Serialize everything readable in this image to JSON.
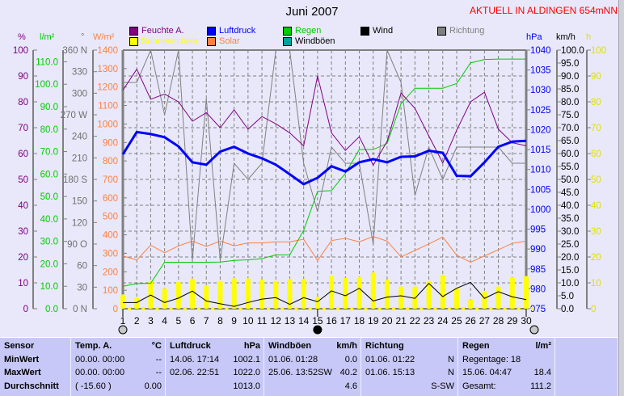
{
  "header": {
    "title": "Juni 2007",
    "aktuell": "AKTUELL IN ALDINGEN 654mNN"
  },
  "legend": [
    {
      "label": "Feuchte A.",
      "color": "#800080"
    },
    {
      "label": "Luftdruck",
      "color": "#0000ff"
    },
    {
      "label": "Regen",
      "color": "#00cc00"
    },
    {
      "label": "Wind",
      "color": "#000000"
    },
    {
      "label": "Richtung",
      "color": "#808080"
    },
    {
      "label": "Sonnenschein",
      "color": "#ffff00"
    },
    {
      "label": "Solar",
      "color": "#ff8040"
    },
    {
      "label": "Windböen",
      "color": "#00a0a0"
    }
  ],
  "units": {
    "pct": "%",
    "rain": "l/m²",
    "deg": "°",
    "solar": "W/m²",
    "hpa": "hPa",
    "kmh": "km/h",
    "h": "h"
  },
  "chart_data": {
    "type": "line",
    "title": "Juni 2007",
    "x": [
      1,
      2,
      3,
      4,
      5,
      6,
      7,
      8,
      9,
      10,
      11,
      12,
      13,
      14,
      15,
      16,
      17,
      18,
      19,
      20,
      21,
      22,
      23,
      24,
      25,
      26,
      27,
      28,
      29,
      30
    ],
    "axes": {
      "humidity": {
        "min": 0,
        "max": 100,
        "ticks": [
          0,
          10,
          20,
          30,
          40,
          50,
          60,
          70,
          80,
          90,
          100
        ],
        "labels": [
          "0",
          "10",
          "20",
          "30",
          "40",
          "50",
          "60",
          "70",
          "80",
          "90",
          "100"
        ],
        "color": "#800080"
      },
      "rain": {
        "min": 0,
        "max": 115.2,
        "ticks": [
          0,
          10,
          20,
          30,
          40,
          50,
          60,
          70,
          80,
          90,
          100,
          110
        ],
        "labels": [
          "0.0",
          "10.0",
          "20.0",
          "30.0",
          "40.0",
          "50.0",
          "60.0",
          "70.0",
          "80.0",
          "90.0",
          "100.0",
          "110.0"
        ],
        "color": "#00cc00"
      },
      "direction": {
        "min": 0,
        "max": 360,
        "ticks": [
          0,
          30,
          60,
          90,
          120,
          150,
          180,
          210,
          240,
          270,
          300,
          330,
          360
        ],
        "labels": [
          "0   N",
          "30",
          "60",
          "90  O",
          "120",
          "150",
          "180 S",
          "210",
          "240",
          "270 W",
          "300",
          "330",
          "360 N"
        ],
        "color": "#707070"
      },
      "solar": {
        "min": 0,
        "max": 1400,
        "ticks": [
          0,
          100,
          200,
          300,
          400,
          500,
          600,
          700,
          800,
          900,
          1000,
          1100,
          1200,
          1300,
          1400
        ],
        "labels": [
          "0",
          "100",
          "200",
          "300",
          "400",
          "500",
          "600",
          "700",
          "800",
          "900",
          "1000",
          "1100",
          "1200",
          "1300",
          "1400"
        ],
        "color": "#ff8040"
      },
      "pressure": {
        "min": 975,
        "max": 1040,
        "ticks": [
          975,
          980,
          985,
          990,
          995,
          1000,
          1005,
          1010,
          1015,
          1020,
          1025,
          1030,
          1035,
          1040
        ],
        "labels": [
          "975",
          "980",
          "985",
          "990",
          "995",
          "1000",
          "1005",
          "1010",
          "1015",
          "1020",
          "1025",
          "1030",
          "1035",
          "1040"
        ],
        "color": "#0000ff"
      },
      "wind": {
        "min": 0,
        "max": 100,
        "ticks": [
          0,
          5,
          10,
          15,
          20,
          25,
          30,
          35,
          40,
          45,
          50,
          55,
          60,
          65,
          70,
          75,
          80,
          85,
          90,
          95,
          100
        ],
        "labels": [
          "0.0",
          "5.0",
          "10.0",
          "15.0",
          "20.0",
          "25.0",
          "30.0",
          "35.0",
          "40.0",
          "45.0",
          "50.0",
          "55.0",
          "60.0",
          "65.0",
          "70.0",
          "75.0",
          "80.0",
          "85.0",
          "90.0",
          "95.0",
          "100.0"
        ],
        "color": "#000000"
      },
      "sunshine": {
        "min": 0,
        "max": 100,
        "ticks": [
          0,
          10,
          20,
          30,
          40,
          50,
          60,
          70,
          80,
          90,
          100
        ],
        "labels": [
          "0",
          "10",
          "20",
          "30",
          "40",
          "50",
          "60",
          "70",
          "80",
          "90",
          "100"
        ],
        "color": "#e0e000"
      }
    },
    "series": [
      {
        "name": "Sonnenschein",
        "axis": "sunshine",
        "kind": "bar",
        "color": "#ffff00",
        "values": [
          5.5,
          4.3,
          10.8,
          7.9,
          10.5,
          11.6,
          9,
          10.8,
          11.8,
          11.8,
          11.3,
          10.8,
          11.6,
          11.6,
          4.6,
          12.8,
          11.9,
          12.3,
          14,
          11.3,
          8.6,
          8.6,
          10.8,
          13.1,
          8.1,
          3.5,
          6.7,
          8.6,
          12.3,
          12.6
        ]
      },
      {
        "name": "Solar",
        "axis": "solar",
        "kind": "line",
        "color": "#ff8040",
        "width": 1,
        "values": [
          286,
          264,
          344,
          303,
          340,
          366,
          337,
          366,
          341,
          356,
          356,
          362,
          362,
          376,
          261,
          369,
          381,
          362,
          391,
          366,
          281,
          315,
          351,
          388,
          290,
          252,
          286,
          319,
          354,
          366
        ]
      },
      {
        "name": "Regen",
        "axis": "rain",
        "kind": "line",
        "color": "#00cc00",
        "width": 1,
        "values": [
          10.0,
          11.2,
          11.3,
          20.7,
          20.7,
          20.7,
          20.7,
          20.8,
          21.5,
          21.8,
          22.3,
          24.0,
          24.0,
          34.9,
          52.3,
          52.6,
          60.3,
          70.9,
          70.9,
          73.6,
          91.3,
          98.2,
          98.2,
          98.2,
          100.3,
          109.5,
          111.0,
          111.2,
          111.2,
          111.2
        ]
      },
      {
        "name": "Richtung",
        "axis": "direction",
        "kind": "line",
        "color": "#808080",
        "width": 1,
        "values": [
          315,
          315,
          360,
          270,
          360,
          67.5,
          292.5,
          67.5,
          202.5,
          180,
          202.5,
          360,
          360,
          202.5,
          135,
          225,
          202.5,
          202.5,
          90,
          360,
          315,
          157.5,
          225,
          180,
          225,
          225,
          225,
          225,
          202.5,
          202.5
        ]
      },
      {
        "name": "Feuchte A.",
        "axis": "humidity",
        "kind": "line",
        "color": "#800080",
        "width": 1,
        "values": [
          84.5,
          92.6,
          81,
          83,
          80,
          72.5,
          75.8,
          70,
          76.9,
          69.4,
          74.3,
          71.5,
          68,
          63,
          90,
          68,
          61.2,
          66.5,
          55.5,
          64.7,
          83.4,
          77.5,
          66.8,
          56.4,
          69,
          80,
          83.7,
          69.4,
          64.2,
          63
        ]
      },
      {
        "name": "Luftdruck",
        "axis": "pressure",
        "kind": "line",
        "color": "#0000ff",
        "width": 3,
        "values": [
          1013.8,
          1019.4,
          1018.9,
          1018.1,
          1015.8,
          1011.8,
          1011.2,
          1014.5,
          1015.7,
          1014.0,
          1012.8,
          1011.2,
          1008.8,
          1006.3,
          1007.9,
          1010.8,
          1009.5,
          1011.8,
          1012.6,
          1011.8,
          1013.2,
          1013.3,
          1014.7,
          1014.2,
          1008.4,
          1008.3,
          1011.8,
          1015.7,
          1017.0,
          1017.2
        ]
      },
      {
        "name": "Wind",
        "axis": "wind",
        "kind": "line",
        "color": "#000000",
        "width": 1,
        "values": [
          2.4,
          2.4,
          5.3,
          2.4,
          4.1,
          6.8,
          3.0,
          1.9,
          0.9,
          2.4,
          3.7,
          4.3,
          1.7,
          4.3,
          2.7,
          6.9,
          5.0,
          7.9,
          3.0,
          4.5,
          5.0,
          4.0,
          9.8,
          4.7,
          7.9,
          10.2,
          4.0,
          6.6,
          4.6,
          3.5
        ]
      }
    ],
    "moon_phases": [
      {
        "day": 1,
        "phase": "full"
      },
      {
        "day": 15,
        "phase": "new"
      },
      {
        "day": 30,
        "phase": "full"
      }
    ]
  },
  "table": {
    "cols": [
      {
        "h1": "Sensor",
        "h2": "",
        "rows": [
          [
            "MinWert",
            ""
          ],
          [
            "MaxWert",
            ""
          ],
          [
            "Durchschnitt",
            ""
          ]
        ]
      },
      {
        "h1": "Temp. A.",
        "h2": "°C",
        "rows": [
          [
            "00.00.  00:00",
            "--"
          ],
          [
            "00.00.  00:00",
            "--"
          ],
          [
            "( -15.60 )",
            "0.00"
          ]
        ]
      },
      {
        "h1": "Luftdruck",
        "h2": "hPa",
        "rows": [
          [
            "14.06.  17:14",
            "1002.1"
          ],
          [
            "02.06.  22:51",
            "1022.0"
          ],
          [
            "",
            "1013.0"
          ]
        ]
      },
      {
        "h1": "Windböen",
        "h2": "km/h",
        "rows": [
          [
            "01.06.  01:28",
            "0.0"
          ],
          [
            "25.06.  13:52SW",
            "40.2"
          ],
          [
            "",
            "4.6"
          ]
        ]
      },
      {
        "h1": "Richtung",
        "h2": "",
        "rows": [
          [
            "01.06.  01:22",
            "N"
          ],
          [
            "01.06.  15:13",
            "N"
          ],
          [
            "",
            "S-SW"
          ]
        ]
      },
      {
        "h1": "Regen",
        "h2": "l/m²",
        "rows": [
          [
            "Regentage: 18",
            ""
          ],
          [
            "15.06.  04:47",
            "18.4"
          ],
          [
            "Gesamt:",
            "111.2"
          ]
        ]
      },
      {
        "h1": "",
        "h2": "",
        "rows": [
          [
            "",
            ""
          ],
          [
            "",
            ""
          ],
          [
            "",
            ""
          ]
        ]
      }
    ]
  }
}
